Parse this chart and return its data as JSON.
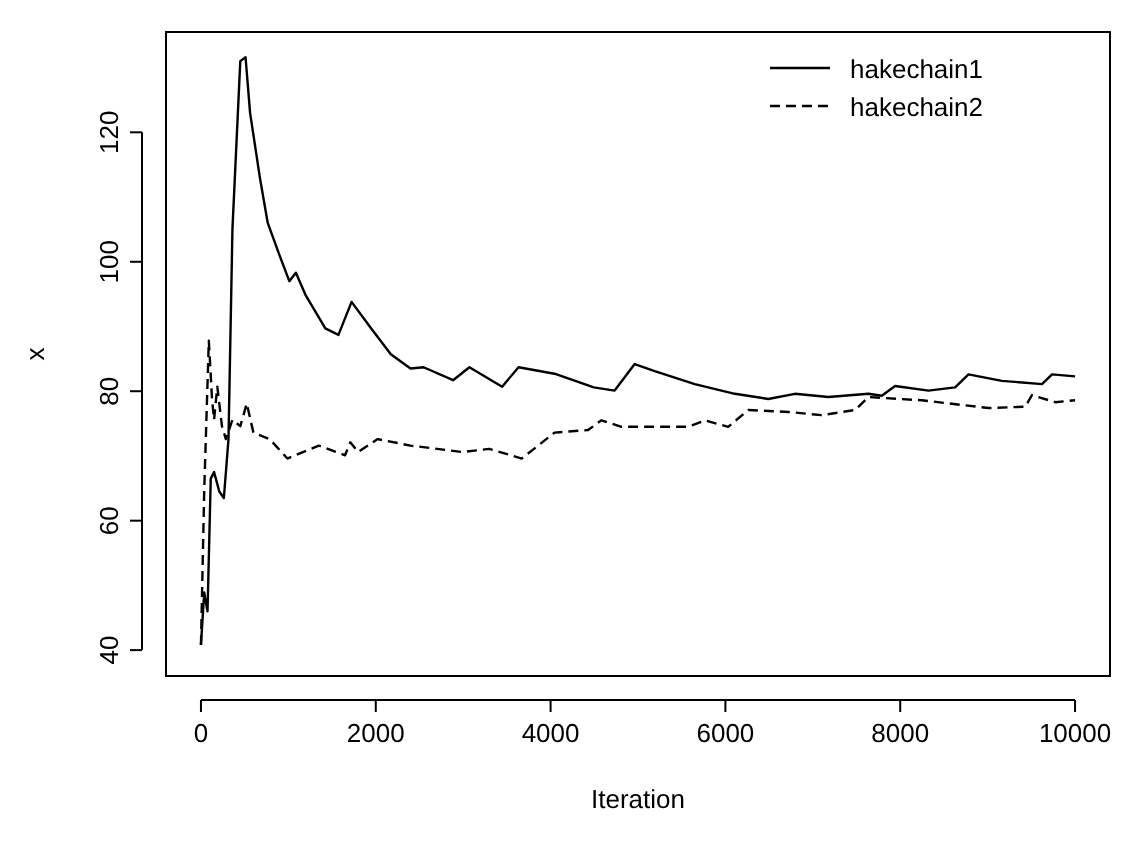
{
  "chart_data": {
    "type": "line",
    "xlabel": "Iteration",
    "ylabel": "x",
    "xlim": [
      -400,
      10400
    ],
    "ylim": [
      36,
      135.5
    ],
    "xticks": [
      0,
      2000,
      4000,
      6000,
      8000,
      10000
    ],
    "yticks": [
      40,
      60,
      80,
      100,
      120
    ],
    "grid": false,
    "legend": "top right",
    "series": [
      {
        "name": "hakechain1",
        "color": "#000000",
        "line_style": "solid",
        "x": [
          0,
          37,
          75,
          112,
          150,
          210,
          262,
          315,
          360,
          450,
          510,
          562,
          674,
          764,
          899,
          1011,
          1086,
          1199,
          1423,
          1573,
          1723,
          1948,
          2172,
          2397,
          2547,
          2884,
          3071,
          3446,
          3633,
          4045,
          4494,
          4733,
          4962,
          5191,
          5650,
          6108,
          6490,
          6795,
          7178,
          7636,
          7789,
          7941,
          8323,
          8628,
          8781,
          9163,
          9622,
          9737,
          10000
        ],
        "values": [
          40.8,
          48.9,
          46,
          66.5,
          67.5,
          64.5,
          63.5,
          72.6,
          105,
          131,
          131.6,
          123,
          113,
          106,
          101,
          97,
          98.3,
          94.8,
          89.7,
          88.7,
          93.8,
          89.7,
          85.7,
          83.5,
          83.7,
          81.7,
          83.7,
          80.7,
          83.7,
          82.7,
          80.6,
          80.1,
          84.2,
          83.1,
          81.1,
          79.6,
          78.8,
          79.6,
          79.1,
          79.6,
          79.3,
          80.8,
          80.1,
          80.6,
          82.6,
          81.6,
          81.1,
          82.6,
          82.3
        ]
      },
      {
        "name": "hakechain2",
        "color": "#000000",
        "line_style": "dashed",
        "x": [
          0,
          37,
          90,
          127,
          150,
          187,
          240,
          285,
          360,
          450,
          524,
          600,
          787,
          989,
          1348,
          1648,
          1708,
          1798,
          2022,
          2397,
          2996,
          3296,
          3670,
          4045,
          4428,
          4581,
          4810,
          5574,
          5765,
          6032,
          6261,
          6719,
          7101,
          7483,
          7636,
          8247,
          9010,
          9430,
          9507,
          9774,
          10000
        ],
        "values": [
          40.8,
          64.5,
          87.8,
          78.7,
          75.6,
          80.7,
          74.6,
          72.6,
          75.6,
          74.6,
          78.1,
          73.6,
          72.6,
          69.6,
          71.6,
          70.1,
          72.1,
          70.6,
          72.6,
          71.6,
          70.6,
          71.1,
          69.6,
          73.6,
          74,
          75.5,
          74.5,
          74.5,
          75.5,
          74.5,
          77.1,
          76.8,
          76.3,
          77.1,
          79.1,
          78.6,
          77.4,
          77.6,
          79.4,
          78.3,
          78.6
        ]
      }
    ]
  }
}
